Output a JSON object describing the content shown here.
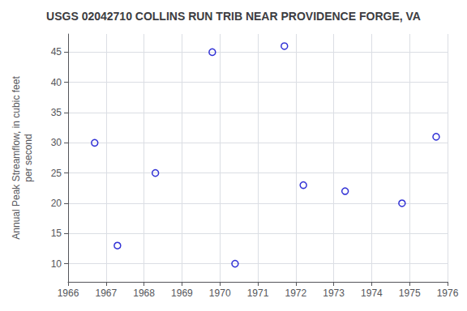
{
  "chart_data": {
    "type": "scatter",
    "title": "USGS 02042710 COLLINS RUN TRIB NEAR PROVIDENCE FORGE, VA",
    "ylabel": "Annual Peak Streamflow, in cubic feet\nper second",
    "x": [
      1966.7,
      1967.3,
      1968.3,
      1969.8,
      1970.4,
      1971.7,
      1972.2,
      1973.3,
      1974.8,
      1975.7
    ],
    "values": [
      30,
      13,
      25,
      45,
      10,
      46,
      23,
      22,
      20,
      31
    ],
    "color": "#0000cc",
    "marker": "open_circle",
    "xlim": [
      1966,
      1976
    ],
    "xticks": [
      1966,
      1967,
      1968,
      1969,
      1970,
      1971,
      1972,
      1973,
      1974,
      1975,
      1976
    ],
    "ylim": [
      7,
      48
    ],
    "yticks": [
      10,
      15,
      20,
      25,
      30,
      35,
      40,
      45
    ],
    "grid": true
  }
}
